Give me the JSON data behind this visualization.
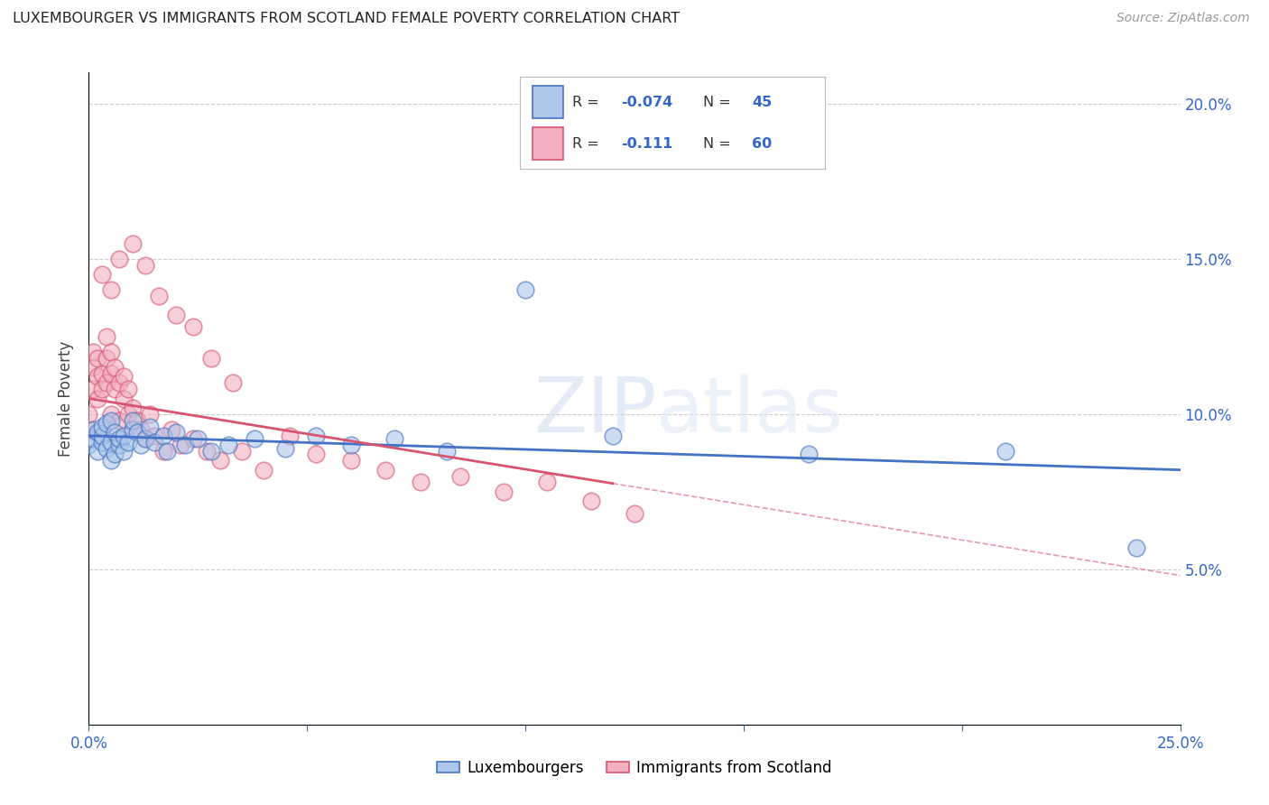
{
  "title": "LUXEMBOURGER VS IMMIGRANTS FROM SCOTLAND FEMALE POVERTY CORRELATION CHART",
  "source": "Source: ZipAtlas.com",
  "ylabel": "Female Poverty",
  "x_min": 0.0,
  "x_max": 0.25,
  "y_min": 0.0,
  "y_max": 0.21,
  "x_tick_pos": [
    0.0,
    0.05,
    0.1,
    0.15,
    0.2,
    0.25
  ],
  "x_tick_labels": [
    "0.0%",
    "",
    "",
    "",
    "",
    "25.0%"
  ],
  "y_tick_pos": [
    0.05,
    0.1,
    0.15,
    0.2
  ],
  "y_tick_labels": [
    "5.0%",
    "10.0%",
    "15.0%",
    "20.0%"
  ],
  "blue_R": "-0.074",
  "blue_N": "45",
  "pink_R": "-0.111",
  "pink_N": "60",
  "blue_color": "#adc6e8",
  "pink_color": "#f2afc0",
  "blue_line_color": "#4472c4",
  "pink_line_color": "#d9546e",
  "legend_label_blue": "Luxembourgers",
  "legend_label_pink": "Immigrants from Scotland",
  "blue_scatter_x": [
    0.0,
    0.001,
    0.001,
    0.002,
    0.002,
    0.003,
    0.003,
    0.003,
    0.004,
    0.004,
    0.005,
    0.005,
    0.005,
    0.006,
    0.006,
    0.007,
    0.007,
    0.008,
    0.008,
    0.009,
    0.01,
    0.01,
    0.011,
    0.012,
    0.013,
    0.014,
    0.015,
    0.017,
    0.018,
    0.02,
    0.022,
    0.025,
    0.028,
    0.032,
    0.038,
    0.045,
    0.052,
    0.06,
    0.07,
    0.082,
    0.1,
    0.12,
    0.165,
    0.21,
    0.24
  ],
  "blue_scatter_y": [
    0.09,
    0.092,
    0.095,
    0.088,
    0.094,
    0.091,
    0.093,
    0.096,
    0.089,
    0.097,
    0.085,
    0.091,
    0.098,
    0.087,
    0.094,
    0.09,
    0.092,
    0.088,
    0.093,
    0.091,
    0.095,
    0.098,
    0.094,
    0.09,
    0.092,
    0.096,
    0.091,
    0.093,
    0.088,
    0.094,
    0.09,
    0.092,
    0.088,
    0.09,
    0.092,
    0.089,
    0.093,
    0.09,
    0.092,
    0.088,
    0.14,
    0.093,
    0.087,
    0.088,
    0.057
  ],
  "pink_scatter_x": [
    0.0,
    0.0,
    0.001,
    0.001,
    0.001,
    0.002,
    0.002,
    0.002,
    0.003,
    0.003,
    0.003,
    0.004,
    0.004,
    0.004,
    0.005,
    0.005,
    0.005,
    0.006,
    0.006,
    0.007,
    0.007,
    0.008,
    0.008,
    0.009,
    0.009,
    0.01,
    0.01,
    0.011,
    0.012,
    0.013,
    0.014,
    0.015,
    0.017,
    0.019,
    0.021,
    0.024,
    0.027,
    0.03,
    0.035,
    0.04,
    0.046,
    0.052,
    0.06,
    0.068,
    0.076,
    0.085,
    0.095,
    0.105,
    0.115,
    0.125,
    0.003,
    0.005,
    0.007,
    0.01,
    0.013,
    0.016,
    0.02,
    0.024,
    0.028,
    0.033
  ],
  "pink_scatter_y": [
    0.095,
    0.1,
    0.115,
    0.108,
    0.12,
    0.112,
    0.105,
    0.118,
    0.113,
    0.108,
    0.095,
    0.118,
    0.125,
    0.11,
    0.1,
    0.113,
    0.12,
    0.108,
    0.115,
    0.098,
    0.11,
    0.105,
    0.112,
    0.1,
    0.108,
    0.095,
    0.102,
    0.098,
    0.095,
    0.092,
    0.1,
    0.093,
    0.088,
    0.095,
    0.09,
    0.092,
    0.088,
    0.085,
    0.088,
    0.082,
    0.093,
    0.087,
    0.085,
    0.082,
    0.078,
    0.08,
    0.075,
    0.078,
    0.072,
    0.068,
    0.145,
    0.14,
    0.15,
    0.155,
    0.148,
    0.138,
    0.132,
    0.128,
    0.118,
    0.11
  ],
  "pink_line_solid_x_end": 0.12,
  "blue_line_y_start": 0.093,
  "blue_line_y_end": 0.082,
  "pink_line_y_start": 0.105,
  "pink_line_y_end": 0.048
}
